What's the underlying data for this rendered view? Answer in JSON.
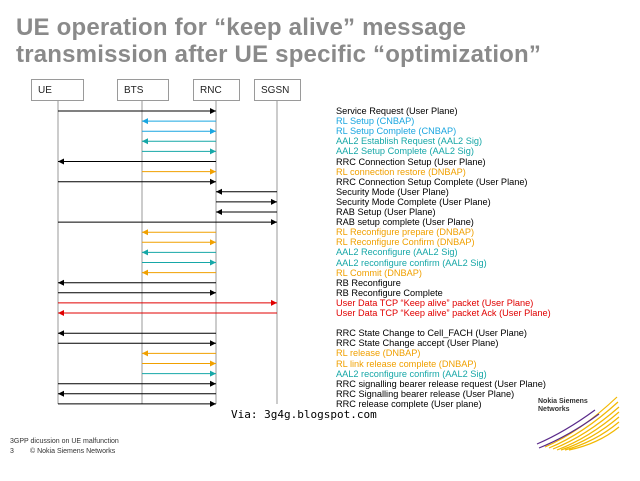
{
  "title_line1": "UE operation for “keep alive” message",
  "title_line2": "transmission after UE specific “optimization”",
  "entities": [
    "UE",
    "BTS",
    "RNC",
    "SGSN"
  ],
  "colors": {
    "black": "#000000",
    "blue": "#1aa6e0",
    "teal": "#16a7a7",
    "orange": "#f0a000",
    "red": "#e00000"
  },
  "messages": [
    {
      "text": "Service Request (User Plane)",
      "color": "black",
      "from": "UE",
      "to": "RNC"
    },
    {
      "text": "RL Setup (CNBAP)",
      "color": "blue",
      "from": "RNC",
      "to": "BTS"
    },
    {
      "text": "RL Setup Complete (CNBAP)",
      "color": "blue",
      "from": "BTS",
      "to": "RNC"
    },
    {
      "text": "AAL2 Establish Request (AAL2 Sig)",
      "color": "teal",
      "from": "RNC",
      "to": "BTS"
    },
    {
      "text": "AAL2 Setup Complete (AAL2 Sig)",
      "color": "teal",
      "from": "BTS",
      "to": "RNC"
    },
    {
      "text": "RRC Connection Setup (User Plane)",
      "color": "black",
      "from": "RNC",
      "to": "UE"
    },
    {
      "text": "RL connection restore (DNBAP)",
      "color": "orange",
      "from": "BTS",
      "to": "RNC"
    },
    {
      "text": "RRC Connection Setup Complete (User Plane)",
      "color": "black",
      "from": "UE",
      "to": "RNC"
    },
    {
      "text": "Security Mode (User Plane)",
      "color": "black",
      "from": "SGSN",
      "to": "RNC"
    },
    {
      "text": "Security Mode Complete (User Plane)",
      "color": "black",
      "from": "RNC",
      "to": "SGSN"
    },
    {
      "text": "RAB Setup (User Plane)",
      "color": "black",
      "from": "SGSN",
      "to": "RNC"
    },
    {
      "text": "RAB setup complete (User Plane)",
      "color": "black",
      "from": "UE",
      "to": "SGSN"
    },
    {
      "text": "RL Reconfigure prepare (DNBAP)",
      "color": "orange",
      "from": "RNC",
      "to": "BTS"
    },
    {
      "text": "RL Reconfigure Confirm (DNBAP)",
      "color": "orange",
      "from": "BTS",
      "to": "RNC"
    },
    {
      "text": "AAL2 Reconfigure (AAL2 Sig)",
      "color": "teal",
      "from": "RNC",
      "to": "BTS"
    },
    {
      "text": "AAL2 reconfigure confirm (AAL2 Sig)",
      "color": "teal",
      "from": "BTS",
      "to": "RNC"
    },
    {
      "text": "RL Commit (DNBAP)",
      "color": "orange",
      "from": "RNC",
      "to": "BTS"
    },
    {
      "text": "RB Reconfigure",
      "color": "black",
      "from": "RNC",
      "to": "UE"
    },
    {
      "text": "RB Reconfigure Complete",
      "color": "black",
      "from": "UE",
      "to": "RNC"
    },
    {
      "text": "User Data TCP “Keep alive” packet (User Plane)",
      "color": "red",
      "from": "UE",
      "to": "SGSN"
    },
    {
      "text": "User Data TCP “Keep alive” packet Ack (User Plane)",
      "color": "red",
      "from": "SGSN",
      "to": "UE"
    },
    {
      "text": "",
      "color": "black",
      "from": "",
      "to": ""
    },
    {
      "text": "RRC State Change to Cell_FACH (User Plane)",
      "color": "black",
      "from": "RNC",
      "to": "UE"
    },
    {
      "text": "RRC State Change accept (User Plane)",
      "color": "black",
      "from": "UE",
      "to": "RNC"
    },
    {
      "text": "RL release (DNBAP)",
      "color": "orange",
      "from": "RNC",
      "to": "BTS"
    },
    {
      "text": "RL link release complete (DNBAP)",
      "color": "orange",
      "from": "BTS",
      "to": "RNC"
    },
    {
      "text": "AAL2 reconfigure confirm (AAL2 Sig)",
      "color": "teal",
      "from": "BTS",
      "to": "RNC"
    },
    {
      "text": "RRC signalling bearer release request (User Plane)",
      "color": "black",
      "from": "UE",
      "to": "RNC"
    },
    {
      "text": "RRC Signalling bearer release (User Plane)",
      "color": "black",
      "from": "RNC",
      "to": "UE"
    },
    {
      "text": "RRC release complete (User plane)",
      "color": "black",
      "from": "UE",
      "to": "RNC"
    }
  ],
  "footer": {
    "line1": "3GPP dicussion on UE malfunction",
    "page": "3",
    "copyright": "© Nokia Siemens Networks"
  },
  "via": "Via: 3g4g.blogspot.com",
  "logo": {
    "line1": "Nokia Siemens",
    "line2": "Networks"
  }
}
